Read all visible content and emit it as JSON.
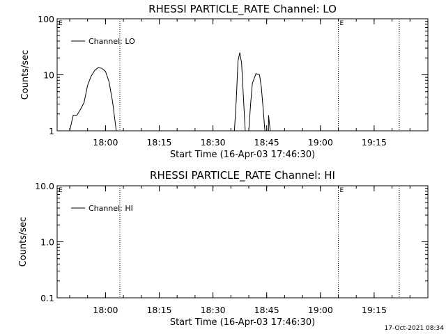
{
  "footer": {
    "timestamp": "17-Oct-2021 08:34"
  },
  "chart_data": [
    {
      "type": "line",
      "title": "RHESSI PARTICLE_RATE Channel: LO",
      "xlabel": "Start Time (16-Apr-03 17:46:30)",
      "ylabel": "Counts/sec",
      "yscale": "log",
      "ylim": [
        1,
        100
      ],
      "xlim_minutes_after_start": [
        0,
        103.5
      ],
      "x_tick_labels": [
        "18:00",
        "18:15",
        "18:30",
        "18:45",
        "19:00",
        "19:15"
      ],
      "y_tick_labels": [
        "1",
        "10",
        "100"
      ],
      "y_tick_values": [
        1,
        10,
        100
      ],
      "legend": {
        "entries": [
          "Channel: LO"
        ],
        "position": "top-left"
      },
      "vertical_markers": [
        {
          "time": "18:04",
          "label": ""
        },
        {
          "time": "19:05",
          "label": "E"
        },
        {
          "time": "19:22",
          "label": ""
        }
      ],
      "corner_label": "E",
      "series": [
        {
          "name": "Channel: LO",
          "segments": [
            [
              [
                "17:50",
                1.0
              ],
              [
                "17:51",
                1.9
              ],
              [
                "17:52",
                1.9
              ],
              [
                "17:53",
                2.4
              ],
              [
                "17:54",
                3.2
              ],
              [
                "17:55",
                6.5
              ],
              [
                "17:56",
                9.5
              ],
              [
                "17:57",
                12.0
              ],
              [
                "17:58",
                13.5
              ],
              [
                "17:59",
                13.0
              ],
              [
                "18:00",
                11.5
              ],
              [
                "18:01",
                7.5
              ],
              [
                "18:02",
                3.2
              ],
              [
                "18:03",
                1.0
              ]
            ],
            [
              [
                "18:36",
                1.0
              ],
              [
                "18:36:30",
                3.5
              ],
              [
                "18:37",
                18.0
              ],
              [
                "18:37:30",
                25.0
              ],
              [
                "18:38",
                16.0
              ],
              [
                "18:38:30",
                4.0
              ],
              [
                "18:39",
                1.0
              ]
            ],
            [
              [
                "18:40",
                1.0
              ],
              [
                "18:40:30",
                3.0
              ],
              [
                "18:41",
                7.0
              ],
              [
                "18:42",
                10.5
              ],
              [
                "18:43",
                10.0
              ],
              [
                "18:43:30",
                6.0
              ],
              [
                "18:44",
                2.5
              ],
              [
                "18:44:30",
                1.0
              ]
            ],
            [
              [
                "18:45:30",
                1.0
              ],
              [
                "18:45:30",
                1.9
              ],
              [
                "18:46",
                1.0
              ]
            ]
          ]
        }
      ]
    },
    {
      "type": "line",
      "title": "RHESSI PARTICLE_RATE Channel: HI",
      "xlabel": "Start Time (16-Apr-03 17:46:30)",
      "ylabel": "Counts/sec",
      "yscale": "log",
      "ylim": [
        0.1,
        10
      ],
      "xlim_minutes_after_start": [
        0,
        103.5
      ],
      "x_tick_labels": [
        "18:00",
        "18:15",
        "18:30",
        "18:45",
        "19:00",
        "19:15"
      ],
      "y_tick_labels": [
        "0.1",
        "1.0",
        "10.0"
      ],
      "y_tick_values": [
        0.1,
        1,
        10
      ],
      "legend": {
        "entries": [
          "Channel: HI"
        ],
        "position": "top-left"
      },
      "vertical_markers": [
        {
          "time": "18:04",
          "label": ""
        },
        {
          "time": "19:05",
          "label": "E"
        },
        {
          "time": "19:22",
          "label": ""
        }
      ],
      "corner_label": "E",
      "series": [
        {
          "name": "Channel: HI",
          "segments": []
        }
      ]
    }
  ]
}
